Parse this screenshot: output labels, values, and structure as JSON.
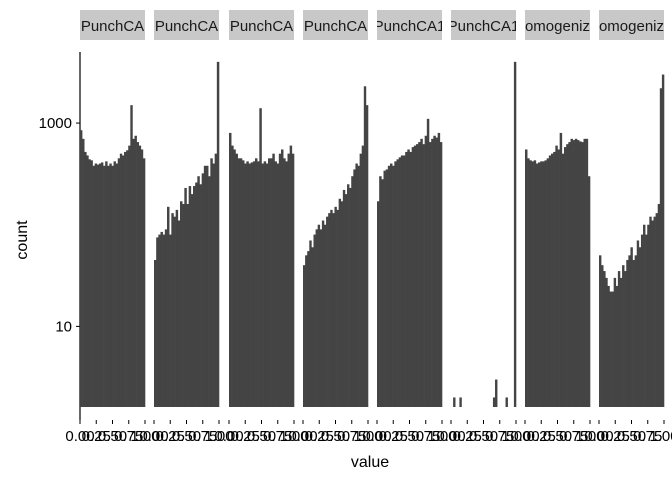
{
  "chart_data": {
    "type": "bar",
    "xlabel": "value",
    "ylabel": "count",
    "yscale": "log10",
    "y_ticks": [
      {
        "value": 10,
        "label": "10"
      },
      {
        "value": 1000,
        "label": "1000"
      }
    ],
    "ylim": [
      1.2,
      5000
    ],
    "xlim": [
      0,
      1
    ],
    "x_ticks": [
      "0.00",
      "0.25",
      "0.50",
      "0.75",
      "1.00"
    ],
    "grid": false,
    "bar_color": "#444444",
    "strip_color": "#c8c8c8",
    "panels": [
      {
        "label": "PunchCA",
        "values": [
          850,
          700,
          520,
          480,
          440,
          430,
          380,
          400,
          390,
          400,
          410,
          380,
          420,
          380,
          400,
          380,
          420,
          400,
          450,
          500,
          480,
          520,
          540,
          600,
          1500,
          700,
          750,
          650,
          600,
          550,
          450
        ]
      },
      {
        "label": "PunchCA",
        "values": [
          45,
          75,
          80,
          85,
          80,
          90,
          150,
          80,
          130,
          120,
          140,
          110,
          170,
          160,
          230,
          160,
          240,
          200,
          240,
          260,
          300,
          250,
          320,
          380,
          380,
          300,
          450,
          400,
          500,
          4000
        ]
      },
      {
        "label": "PunchCA",
        "values": [
          800,
          600,
          550,
          500,
          450,
          450,
          430,
          400,
          420,
          400,
          410,
          420,
          450,
          420,
          1400,
          400,
          420,
          400,
          450,
          450,
          500,
          420,
          400,
          500,
          550,
          450,
          420,
          500,
          600,
          500
        ]
      },
      {
        "label": "PunchCA",
        "values": [
          40,
          50,
          55,
          70,
          60,
          80,
          90,
          100,
          90,
          110,
          100,
          120,
          130,
          140,
          130,
          150,
          140,
          180,
          170,
          220,
          200,
          250,
          230,
          300,
          350,
          400,
          380,
          500,
          600,
          2300,
          1500
        ]
      },
      {
        "label": "PunchCA1",
        "values": [
          170,
          300,
          280,
          340,
          350,
          380,
          400,
          380,
          420,
          440,
          460,
          480,
          480,
          520,
          550,
          520,
          580,
          600,
          620,
          650,
          700,
          620,
          750,
          1100,
          650,
          700,
          750,
          720,
          800,
          650
        ]
      },
      {
        "label": "PunchCA1",
        "values": [
          0,
          2,
          0,
          0,
          2,
          0,
          0,
          0,
          0,
          0,
          0,
          0,
          0,
          0,
          0,
          0,
          0,
          0,
          0,
          0,
          2,
          3,
          0,
          0,
          0,
          0,
          2,
          0,
          0,
          0,
          4000
        ]
      },
      {
        "label": "omogeniz",
        "values": [
          550,
          450,
          430,
          420,
          430,
          400,
          410,
          420,
          420,
          430,
          450,
          480,
          500,
          520,
          600,
          550,
          800,
          500,
          580,
          620,
          650,
          700,
          680,
          700,
          680,
          660,
          650,
          700,
          700,
          300
        ]
      },
      {
        "label": "omogeniz",
        "values": [
          50,
          40,
          35,
          30,
          25,
          22,
          22,
          30,
          25,
          35,
          30,
          40,
          35,
          45,
          50,
          60,
          45,
          50,
          70,
          60,
          80,
          100,
          80,
          100,
          120,
          110,
          120,
          130,
          160,
          2200,
          3000
        ]
      }
    ]
  }
}
